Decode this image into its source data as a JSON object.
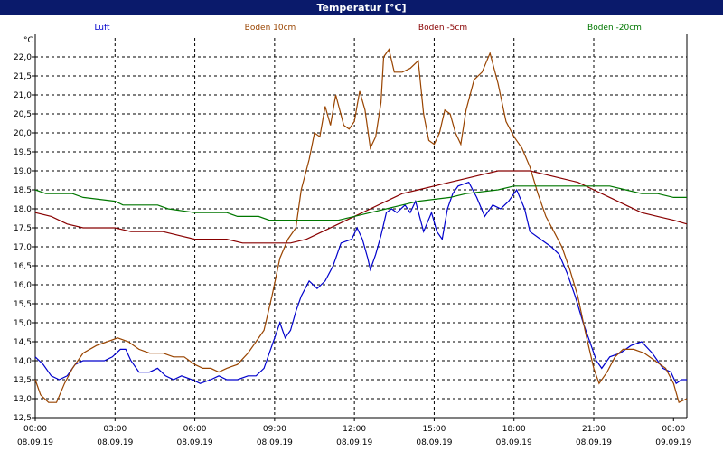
{
  "window": {
    "title": "Temperatur [°C]"
  },
  "chart_data": {
    "type": "line",
    "title": "Temperatur [°C]",
    "ylabel": "°C",
    "xlabel": "",
    "ylim": [
      12.5,
      22.0
    ],
    "yticks": [
      "12,5",
      "13,0",
      "13,5",
      "14,0",
      "14,5",
      "15,0",
      "15,5",
      "16,0",
      "16,5",
      "17,0",
      "17,5",
      "18,0",
      "18,5",
      "19,0",
      "19,5",
      "20,0",
      "20,5",
      "21,0",
      "21,5",
      "22,0"
    ],
    "xticks": [
      {
        "time": "00:00",
        "date": "08.09.19"
      },
      {
        "time": "03:00",
        "date": "08.09.19"
      },
      {
        "time": "06:00",
        "date": "08.09.19"
      },
      {
        "time": "09:00",
        "date": "08.09.19"
      },
      {
        "time": "12:00",
        "date": "08.09.19"
      },
      {
        "time": "15:00",
        "date": "08.09.19"
      },
      {
        "time": "18:00",
        "date": "08.09.19"
      },
      {
        "time": "21:00",
        "date": "08.09.19"
      },
      {
        "time": "00:00",
        "date": "09.09.19"
      }
    ],
    "x_unit": "hours since 08.09.19 00:00",
    "grid": true,
    "legend_position": "top",
    "series": [
      {
        "name": "Luft",
        "color": "#0000cc",
        "points": [
          [
            0,
            14.1
          ],
          [
            0.3,
            13.9
          ],
          [
            0.6,
            13.6
          ],
          [
            0.9,
            13.5
          ],
          [
            1.2,
            13.6
          ],
          [
            1.5,
            13.9
          ],
          [
            1.8,
            14.0
          ],
          [
            2.2,
            14.0
          ],
          [
            2.6,
            14.0
          ],
          [
            2.9,
            14.1
          ],
          [
            3.2,
            14.3
          ],
          [
            3.4,
            14.3
          ],
          [
            3.6,
            14.0
          ],
          [
            3.9,
            13.7
          ],
          [
            4.3,
            13.7
          ],
          [
            4.6,
            13.8
          ],
          [
            4.9,
            13.6
          ],
          [
            5.2,
            13.5
          ],
          [
            5.5,
            13.6
          ],
          [
            5.9,
            13.5
          ],
          [
            6.2,
            13.4
          ],
          [
            6.6,
            13.5
          ],
          [
            6.9,
            13.6
          ],
          [
            7.2,
            13.5
          ],
          [
            7.6,
            13.5
          ],
          [
            8.0,
            13.6
          ],
          [
            8.3,
            13.6
          ],
          [
            8.6,
            13.8
          ],
          [
            8.8,
            14.2
          ],
          [
            9.0,
            14.6
          ],
          [
            9.2,
            15.0
          ],
          [
            9.4,
            14.6
          ],
          [
            9.6,
            14.8
          ],
          [
            9.8,
            15.3
          ],
          [
            10.0,
            15.7
          ],
          [
            10.3,
            16.1
          ],
          [
            10.6,
            15.9
          ],
          [
            10.9,
            16.1
          ],
          [
            11.2,
            16.5
          ],
          [
            11.5,
            17.1
          ],
          [
            11.9,
            17.2
          ],
          [
            12.1,
            17.5
          ],
          [
            12.3,
            17.2
          ],
          [
            12.5,
            16.7
          ],
          [
            12.6,
            16.4
          ],
          [
            12.8,
            16.8
          ],
          [
            13.0,
            17.3
          ],
          [
            13.2,
            17.9
          ],
          [
            13.4,
            18.0
          ],
          [
            13.6,
            17.9
          ],
          [
            13.9,
            18.1
          ],
          [
            14.1,
            17.9
          ],
          [
            14.3,
            18.2
          ],
          [
            14.6,
            17.4
          ],
          [
            14.9,
            17.9
          ],
          [
            15.1,
            17.4
          ],
          [
            15.3,
            17.2
          ],
          [
            15.5,
            18.0
          ],
          [
            15.7,
            18.4
          ],
          [
            15.9,
            18.6
          ],
          [
            16.3,
            18.7
          ],
          [
            16.6,
            18.3
          ],
          [
            16.9,
            17.8
          ],
          [
            17.2,
            18.1
          ],
          [
            17.5,
            18.0
          ],
          [
            17.8,
            18.2
          ],
          [
            18.1,
            18.5
          ],
          [
            18.4,
            18.0
          ],
          [
            18.6,
            17.4
          ],
          [
            19.0,
            17.2
          ],
          [
            19.4,
            17.0
          ],
          [
            19.7,
            16.8
          ],
          [
            20.0,
            16.3
          ],
          [
            20.3,
            15.7
          ],
          [
            20.6,
            15.0
          ],
          [
            20.9,
            14.4
          ],
          [
            21.1,
            14.0
          ],
          [
            21.3,
            13.8
          ],
          [
            21.6,
            14.1
          ],
          [
            22.0,
            14.2
          ],
          [
            22.4,
            14.4
          ],
          [
            22.8,
            14.5
          ],
          [
            23.2,
            14.2
          ],
          [
            23.6,
            13.8
          ],
          [
            23.9,
            13.7
          ],
          [
            24.1,
            13.4
          ],
          [
            24.3,
            13.5
          ],
          [
            24.5,
            13.5
          ]
        ]
      },
      {
        "name": "Boden 10cm",
        "color": "#994400",
        "points": [
          [
            0,
            13.5
          ],
          [
            0.2,
            13.1
          ],
          [
            0.5,
            12.9
          ],
          [
            0.8,
            12.9
          ],
          [
            1.1,
            13.4
          ],
          [
            1.4,
            13.8
          ],
          [
            1.8,
            14.2
          ],
          [
            2.3,
            14.4
          ],
          [
            2.7,
            14.5
          ],
          [
            3.1,
            14.6
          ],
          [
            3.5,
            14.5
          ],
          [
            3.9,
            14.3
          ],
          [
            4.3,
            14.2
          ],
          [
            4.8,
            14.2
          ],
          [
            5.2,
            14.1
          ],
          [
            5.6,
            14.1
          ],
          [
            6.0,
            13.9
          ],
          [
            6.3,
            13.8
          ],
          [
            6.6,
            13.8
          ],
          [
            6.9,
            13.7
          ],
          [
            7.2,
            13.8
          ],
          [
            7.6,
            13.9
          ],
          [
            8.0,
            14.2
          ],
          [
            8.3,
            14.5
          ],
          [
            8.6,
            14.8
          ],
          [
            8.9,
            15.7
          ],
          [
            9.2,
            16.7
          ],
          [
            9.5,
            17.2
          ],
          [
            9.8,
            17.5
          ],
          [
            10.0,
            18.5
          ],
          [
            10.3,
            19.3
          ],
          [
            10.5,
            20.0
          ],
          [
            10.7,
            19.9
          ],
          [
            10.9,
            20.7
          ],
          [
            11.1,
            20.2
          ],
          [
            11.3,
            21.0
          ],
          [
            11.6,
            20.2
          ],
          [
            11.8,
            20.1
          ],
          [
            12.0,
            20.3
          ],
          [
            12.2,
            21.1
          ],
          [
            12.4,
            20.6
          ],
          [
            12.6,
            19.6
          ],
          [
            12.8,
            19.9
          ],
          [
            13.0,
            20.8
          ],
          [
            13.1,
            22.0
          ],
          [
            13.3,
            22.2
          ],
          [
            13.5,
            21.6
          ],
          [
            13.8,
            21.6
          ],
          [
            14.1,
            21.7
          ],
          [
            14.4,
            21.9
          ],
          [
            14.6,
            20.5
          ],
          [
            14.8,
            19.8
          ],
          [
            15.0,
            19.7
          ],
          [
            15.2,
            20.0
          ],
          [
            15.4,
            20.6
          ],
          [
            15.6,
            20.5
          ],
          [
            15.8,
            20.0
          ],
          [
            16.0,
            19.7
          ],
          [
            16.2,
            20.6
          ],
          [
            16.5,
            21.4
          ],
          [
            16.8,
            21.6
          ],
          [
            17.1,
            22.1
          ],
          [
            17.4,
            21.3
          ],
          [
            17.7,
            20.3
          ],
          [
            18.0,
            19.9
          ],
          [
            18.3,
            19.6
          ],
          [
            18.6,
            19.1
          ],
          [
            18.9,
            18.4
          ],
          [
            19.2,
            17.8
          ],
          [
            19.5,
            17.4
          ],
          [
            19.8,
            17.0
          ],
          [
            20.1,
            16.4
          ],
          [
            20.4,
            15.7
          ],
          [
            20.7,
            14.7
          ],
          [
            21.0,
            13.8
          ],
          [
            21.2,
            13.4
          ],
          [
            21.5,
            13.7
          ],
          [
            21.8,
            14.1
          ],
          [
            22.1,
            14.3
          ],
          [
            22.5,
            14.3
          ],
          [
            22.9,
            14.2
          ],
          [
            23.3,
            14.0
          ],
          [
            23.7,
            13.8
          ],
          [
            24.0,
            13.4
          ],
          [
            24.2,
            12.9
          ],
          [
            24.5,
            13.0
          ]
        ]
      },
      {
        "name": "Boden -5cm",
        "color": "#880000",
        "points": [
          [
            0,
            17.9
          ],
          [
            0.6,
            17.8
          ],
          [
            1.2,
            17.6
          ],
          [
            1.8,
            17.5
          ],
          [
            3.0,
            17.5
          ],
          [
            3.6,
            17.4
          ],
          [
            4.8,
            17.4
          ],
          [
            5.4,
            17.3
          ],
          [
            6.0,
            17.2
          ],
          [
            7.2,
            17.2
          ],
          [
            7.8,
            17.1
          ],
          [
            9.6,
            17.1
          ],
          [
            10.2,
            17.2
          ],
          [
            10.8,
            17.4
          ],
          [
            11.4,
            17.6
          ],
          [
            12.0,
            17.8
          ],
          [
            12.6,
            18.0
          ],
          [
            13.2,
            18.2
          ],
          [
            13.8,
            18.4
          ],
          [
            14.4,
            18.5
          ],
          [
            15.0,
            18.6
          ],
          [
            15.6,
            18.7
          ],
          [
            16.2,
            18.8
          ],
          [
            16.8,
            18.9
          ],
          [
            17.4,
            19.0
          ],
          [
            18.6,
            19.0
          ],
          [
            19.2,
            18.9
          ],
          [
            19.8,
            18.8
          ],
          [
            20.4,
            18.7
          ],
          [
            21.0,
            18.5
          ],
          [
            21.6,
            18.3
          ],
          [
            22.2,
            18.1
          ],
          [
            22.8,
            17.9
          ],
          [
            23.4,
            17.8
          ],
          [
            24.0,
            17.7
          ],
          [
            24.5,
            17.6
          ]
        ]
      },
      {
        "name": "Boden -20cm",
        "color": "#007700",
        "points": [
          [
            0,
            18.5
          ],
          [
            0.4,
            18.4
          ],
          [
            1.4,
            18.4
          ],
          [
            1.8,
            18.3
          ],
          [
            3.0,
            18.2
          ],
          [
            3.3,
            18.1
          ],
          [
            4.6,
            18.1
          ],
          [
            5.0,
            18.0
          ],
          [
            6.0,
            17.9
          ],
          [
            7.2,
            17.9
          ],
          [
            7.6,
            17.8
          ],
          [
            8.4,
            17.8
          ],
          [
            8.8,
            17.7
          ],
          [
            10.8,
            17.7
          ],
          [
            11.4,
            17.7
          ],
          [
            12.0,
            17.8
          ],
          [
            12.6,
            17.9
          ],
          [
            13.2,
            18.0
          ],
          [
            13.8,
            18.1
          ],
          [
            14.4,
            18.2
          ],
          [
            15.6,
            18.3
          ],
          [
            16.2,
            18.4
          ],
          [
            17.4,
            18.5
          ],
          [
            18.0,
            18.6
          ],
          [
            21.6,
            18.6
          ],
          [
            22.2,
            18.5
          ],
          [
            22.8,
            18.4
          ],
          [
            23.4,
            18.4
          ],
          [
            24.0,
            18.3
          ],
          [
            24.5,
            18.3
          ]
        ]
      }
    ]
  }
}
